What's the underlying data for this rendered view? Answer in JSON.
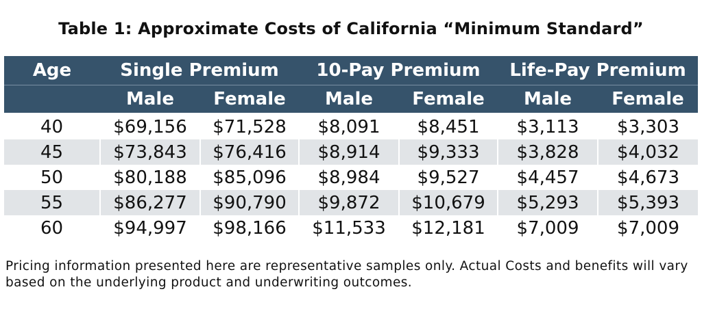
{
  "title": "Table 1: Approximate Costs of California “Minimum Standard”",
  "table": {
    "age_header": "Age",
    "groups": [
      "Single Premium",
      "10-Pay Premium",
      "Life-Pay Premium"
    ],
    "subheaders": [
      "Male",
      "Female",
      "Male",
      "Female",
      "Male",
      "Female"
    ],
    "rows": [
      {
        "age": "40",
        "values": [
          "$69,156",
          "$71,528",
          "$8,091",
          "$8,451",
          "$3,113",
          "$3,303"
        ]
      },
      {
        "age": "45",
        "values": [
          "$73,843",
          "$76,416",
          "$8,914",
          "$9,333",
          "$3,828",
          "$4,032"
        ]
      },
      {
        "age": "50",
        "values": [
          "$80,188",
          "$85,096",
          "$8,984",
          "$9,527",
          "$4,457",
          "$4,673"
        ]
      },
      {
        "age": "55",
        "values": [
          "$86,277",
          "$90,790",
          "$9,872",
          "$10,679",
          "$5,293",
          "$5,393"
        ]
      },
      {
        "age": "60",
        "values": [
          "$94,997",
          "$98,166",
          "$11,533",
          "$12,181",
          "$7,009",
          "$7,009"
        ]
      }
    ]
  },
  "footnote": "Pricing information presented here are representative samples only. Actual Costs and benefits will vary based on the underlying product and underwriting outcomes.",
  "colors": {
    "header_bg": "#36536b",
    "header_text": "#ffffff",
    "stripe_bg": "#e1e4e7"
  }
}
